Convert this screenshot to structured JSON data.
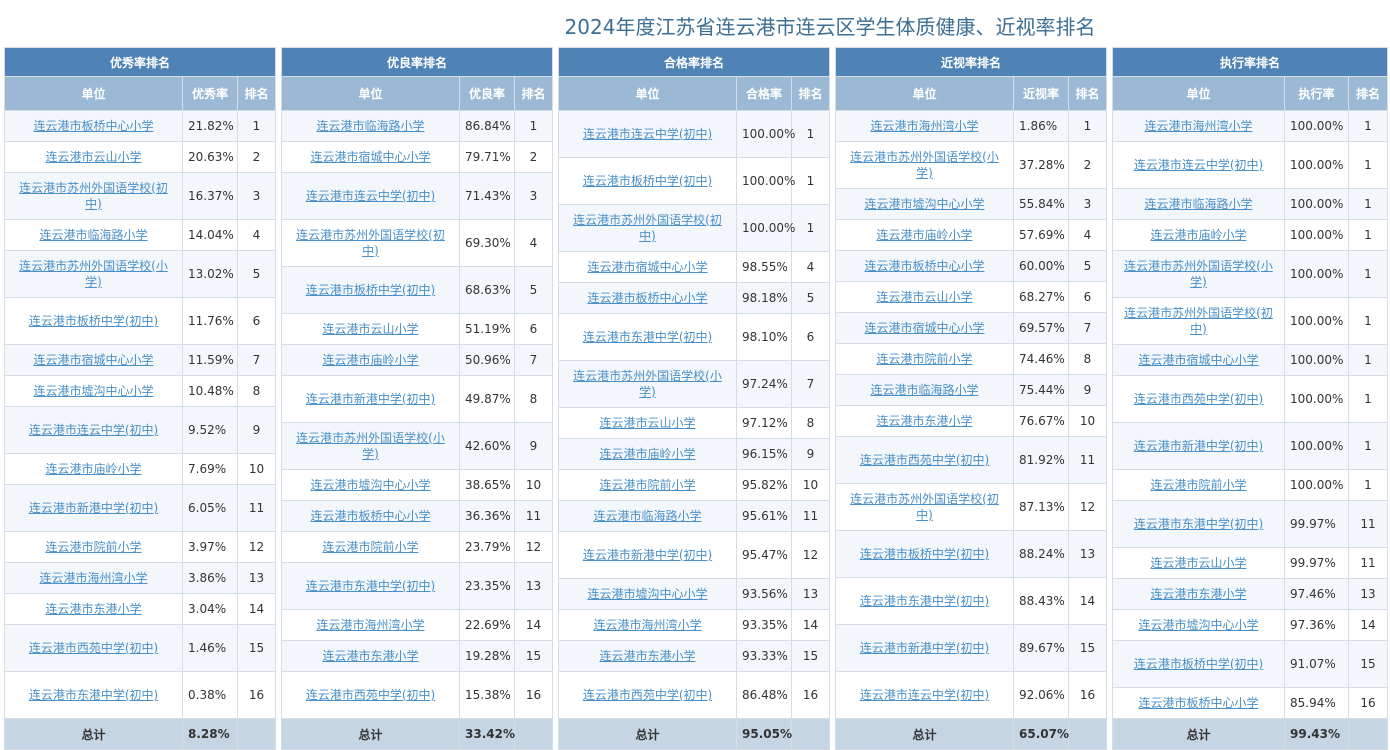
{
  "title": "2024年度江苏省连云港市连云区学生体质健康、近视率排名",
  "panels": [
    {
      "title": "优秀率排名",
      "col_unit": "单位",
      "col_value": "优秀率",
      "col_rank": "排名",
      "rows": [
        {
          "name": "连云港市板桥中心小学",
          "value": "21.82%",
          "rank": "1"
        },
        {
          "name": "连云港市云山小学",
          "value": "20.63%",
          "rank": "2"
        },
        {
          "name": "连云港市苏州外国语学校(初中)",
          "value": "16.37%",
          "rank": "3"
        },
        {
          "name": "连云港市临海路小学",
          "value": "14.04%",
          "rank": "4"
        },
        {
          "name": "连云港市苏州外国语学校(小学)",
          "value": "13.02%",
          "rank": "5"
        },
        {
          "name": "连云港市板桥中学(初中)",
          "value": "11.76%",
          "rank": "6"
        },
        {
          "name": "连云港市宿城中心小学",
          "value": "11.59%",
          "rank": "7"
        },
        {
          "name": "连云港市墟沟中心小学",
          "value": "10.48%",
          "rank": "8"
        },
        {
          "name": "连云港市连云中学(初中)",
          "value": "9.52%",
          "rank": "9"
        },
        {
          "name": "连云港市庙岭小学",
          "value": "7.69%",
          "rank": "10"
        },
        {
          "name": "连云港市新港中学(初中)",
          "value": "6.05%",
          "rank": "11"
        },
        {
          "name": "连云港市院前小学",
          "value": "3.97%",
          "rank": "12"
        },
        {
          "name": "连云港市海州湾小学",
          "value": "3.86%",
          "rank": "13"
        },
        {
          "name": "连云港市东港小学",
          "value": "3.04%",
          "rank": "14"
        },
        {
          "name": "连云港市西苑中学(初中)",
          "value": "1.46%",
          "rank": "15"
        },
        {
          "name": "连云港市东港中学(初中)",
          "value": "0.38%",
          "rank": "16"
        }
      ],
      "total_label": "总计",
      "total_value": "8.28%"
    },
    {
      "title": "优良率排名",
      "col_unit": "单位",
      "col_value": "优良率",
      "col_rank": "排名",
      "rows": [
        {
          "name": "连云港市临海路小学",
          "value": "86.84%",
          "rank": "1"
        },
        {
          "name": "连云港市宿城中心小学",
          "value": "79.71%",
          "rank": "2"
        },
        {
          "name": "连云港市连云中学(初中)",
          "value": "71.43%",
          "rank": "3"
        },
        {
          "name": "连云港市苏州外国语学校(初中)",
          "value": "69.30%",
          "rank": "4"
        },
        {
          "name": "连云港市板桥中学(初中)",
          "value": "68.63%",
          "rank": "5"
        },
        {
          "name": "连云港市云山小学",
          "value": "51.19%",
          "rank": "6"
        },
        {
          "name": "连云港市庙岭小学",
          "value": "50.96%",
          "rank": "7"
        },
        {
          "name": "连云港市新港中学(初中)",
          "value": "49.87%",
          "rank": "8"
        },
        {
          "name": "连云港市苏州外国语学校(小学)",
          "value": "42.60%",
          "rank": "9"
        },
        {
          "name": "连云港市墟沟中心小学",
          "value": "38.65%",
          "rank": "10"
        },
        {
          "name": "连云港市板桥中心小学",
          "value": "36.36%",
          "rank": "11"
        },
        {
          "name": "连云港市院前小学",
          "value": "23.79%",
          "rank": "12"
        },
        {
          "name": "连云港市东港中学(初中)",
          "value": "23.35%",
          "rank": "13"
        },
        {
          "name": "连云港市海州湾小学",
          "value": "22.69%",
          "rank": "14"
        },
        {
          "name": "连云港市东港小学",
          "value": "19.28%",
          "rank": "15"
        },
        {
          "name": "连云港市西苑中学(初中)",
          "value": "15.38%",
          "rank": "16"
        }
      ],
      "total_label": "总计",
      "total_value": "33.42%"
    },
    {
      "title": "合格率排名",
      "col_unit": "单位",
      "col_value": "合格率",
      "col_rank": "排名",
      "rows": [
        {
          "name": "连云港市连云中学(初中)",
          "value": "100.00%",
          "rank": "1"
        },
        {
          "name": "连云港市板桥中学(初中)",
          "value": "100.00%",
          "rank": "1"
        },
        {
          "name": "连云港市苏州外国语学校(初中)",
          "value": "100.00%",
          "rank": "1"
        },
        {
          "name": "连云港市宿城中心小学",
          "value": "98.55%",
          "rank": "4"
        },
        {
          "name": "连云港市板桥中心小学",
          "value": "98.18%",
          "rank": "5"
        },
        {
          "name": "连云港市东港中学(初中)",
          "value": "98.10%",
          "rank": "6"
        },
        {
          "name": "连云港市苏州外国语学校(小学)",
          "value": "97.24%",
          "rank": "7"
        },
        {
          "name": "连云港市云山小学",
          "value": "97.12%",
          "rank": "8"
        },
        {
          "name": "连云港市庙岭小学",
          "value": "96.15%",
          "rank": "9"
        },
        {
          "name": "连云港市院前小学",
          "value": "95.82%",
          "rank": "10"
        },
        {
          "name": "连云港市临海路小学",
          "value": "95.61%",
          "rank": "11"
        },
        {
          "name": "连云港市新港中学(初中)",
          "value": "95.47%",
          "rank": "12"
        },
        {
          "name": "连云港市墟沟中心小学",
          "value": "93.56%",
          "rank": "13"
        },
        {
          "name": "连云港市海州湾小学",
          "value": "93.35%",
          "rank": "14"
        },
        {
          "name": "连云港市东港小学",
          "value": "93.33%",
          "rank": "15"
        },
        {
          "name": "连云港市西苑中学(初中)",
          "value": "86.48%",
          "rank": "16"
        }
      ],
      "total_label": "总计",
      "total_value": "95.05%"
    },
    {
      "title": "近视率排名",
      "col_unit": "单位",
      "col_value": "近视率",
      "col_rank": "排名",
      "rows": [
        {
          "name": "连云港市海州湾小学",
          "value": "1.86%",
          "rank": "1"
        },
        {
          "name": "连云港市苏州外国语学校(小学)",
          "value": "37.28%",
          "rank": "2"
        },
        {
          "name": "连云港市墟沟中心小学",
          "value": "55.84%",
          "rank": "3"
        },
        {
          "name": "连云港市庙岭小学",
          "value": "57.69%",
          "rank": "4"
        },
        {
          "name": "连云港市板桥中心小学",
          "value": "60.00%",
          "rank": "5"
        },
        {
          "name": "连云港市云山小学",
          "value": "68.27%",
          "rank": "6"
        },
        {
          "name": "连云港市宿城中心小学",
          "value": "69.57%",
          "rank": "7"
        },
        {
          "name": "连云港市院前小学",
          "value": "74.46%",
          "rank": "8"
        },
        {
          "name": "连云港市临海路小学",
          "value": "75.44%",
          "rank": "9"
        },
        {
          "name": "连云港市东港小学",
          "value": "76.67%",
          "rank": "10"
        },
        {
          "name": "连云港市西苑中学(初中)",
          "value": "81.92%",
          "rank": "11"
        },
        {
          "name": "连云港市苏州外国语学校(初中)",
          "value": "87.13%",
          "rank": "12"
        },
        {
          "name": "连云港市板桥中学(初中)",
          "value": "88.24%",
          "rank": "13"
        },
        {
          "name": "连云港市东港中学(初中)",
          "value": "88.43%",
          "rank": "14"
        },
        {
          "name": "连云港市新港中学(初中)",
          "value": "89.67%",
          "rank": "15"
        },
        {
          "name": "连云港市连云中学(初中)",
          "value": "92.06%",
          "rank": "16"
        }
      ],
      "total_label": "总计",
      "total_value": "65.07%"
    },
    {
      "title": "执行率排名",
      "col_unit": "单位",
      "col_value": "执行率",
      "col_rank": "排名",
      "rows": [
        {
          "name": "连云港市海州湾小学",
          "value": "100.00%",
          "rank": "1"
        },
        {
          "name": "连云港市连云中学(初中)",
          "value": "100.00%",
          "rank": "1"
        },
        {
          "name": "连云港市临海路小学",
          "value": "100.00%",
          "rank": "1"
        },
        {
          "name": "连云港市庙岭小学",
          "value": "100.00%",
          "rank": "1"
        },
        {
          "name": "连云港市苏州外国语学校(小学)",
          "value": "100.00%",
          "rank": "1"
        },
        {
          "name": "连云港市苏州外国语学校(初中)",
          "value": "100.00%",
          "rank": "1"
        },
        {
          "name": "连云港市宿城中心小学",
          "value": "100.00%",
          "rank": "1"
        },
        {
          "name": "连云港市西苑中学(初中)",
          "value": "100.00%",
          "rank": "1"
        },
        {
          "name": "连云港市新港中学(初中)",
          "value": "100.00%",
          "rank": "1"
        },
        {
          "name": "连云港市院前小学",
          "value": "100.00%",
          "rank": "1"
        },
        {
          "name": "连云港市东港中学(初中)",
          "value": "99.97%",
          "rank": "11"
        },
        {
          "name": "连云港市云山小学",
          "value": "99.97%",
          "rank": "11"
        },
        {
          "name": "连云港市东港小学",
          "value": "97.46%",
          "rank": "13"
        },
        {
          "name": "连云港市墟沟中心小学",
          "value": "97.36%",
          "rank": "14"
        },
        {
          "name": "连云港市板桥中学(初中)",
          "value": "91.07%",
          "rank": "15"
        },
        {
          "name": "连云港市板桥中心小学",
          "value": "85.94%",
          "rank": "16"
        }
      ],
      "total_label": "总计",
      "total_value": "99.43%"
    }
  ]
}
